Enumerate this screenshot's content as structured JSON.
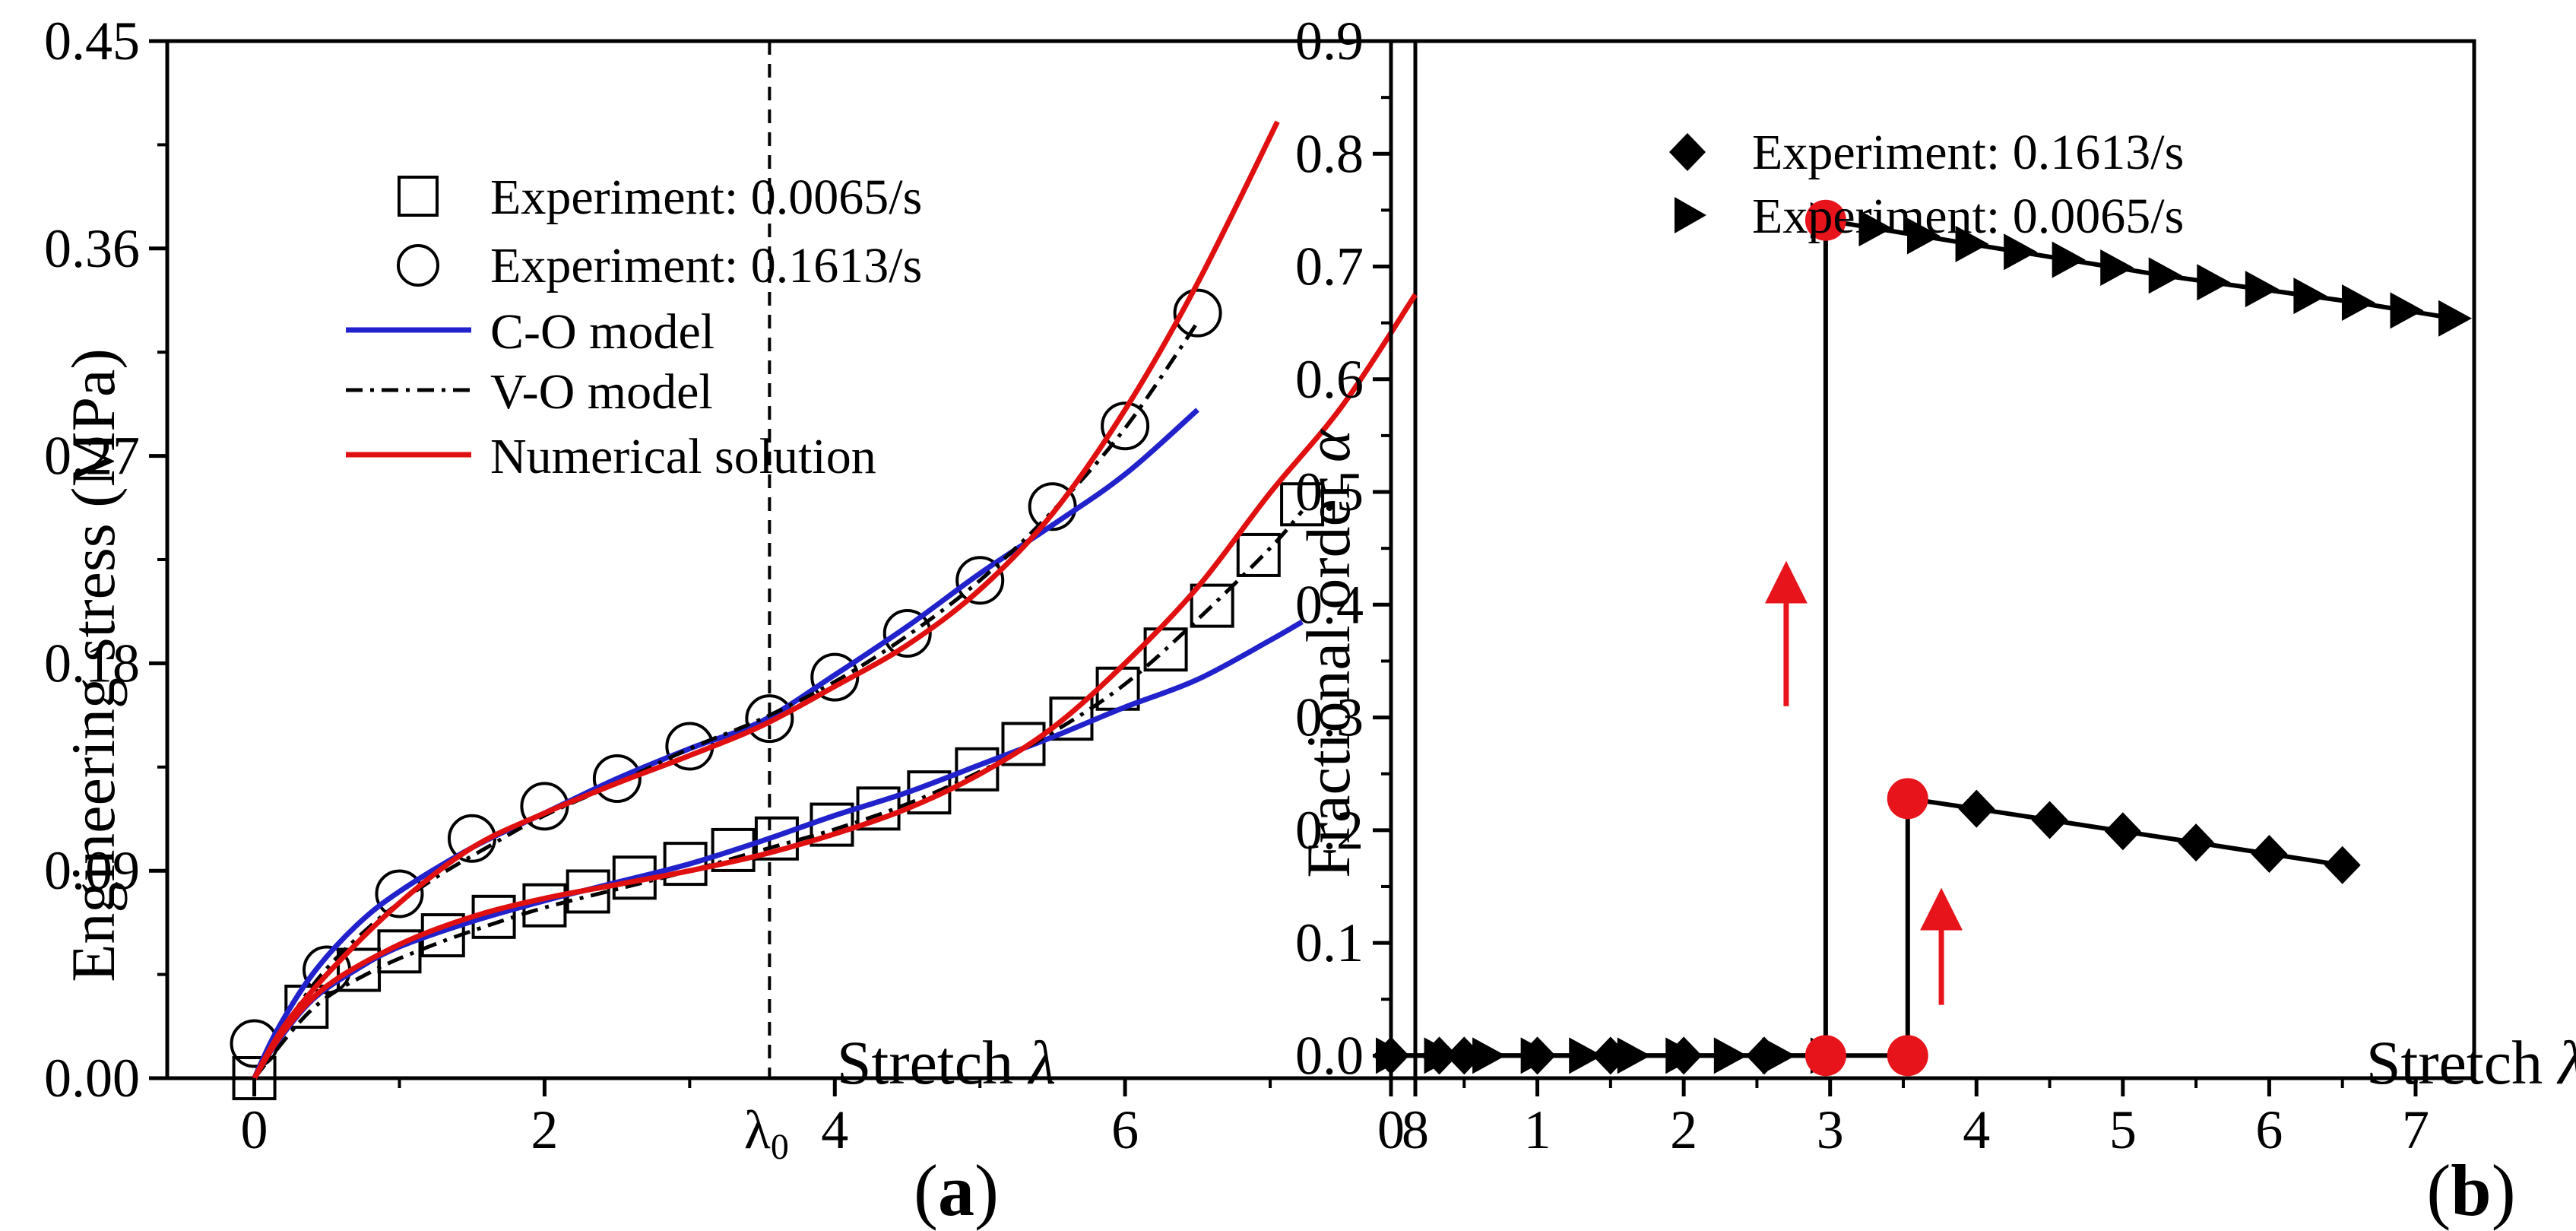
{
  "chart_data": [
    {
      "panel": "a",
      "panel_label_open": "(",
      "panel_label_letter": "a",
      "panel_label_close": ")",
      "type": "line",
      "xlabel": "Stretch",
      "xlabel_symbol": "λ",
      "ylabel": "Engineering stress (MPa)",
      "xlim": [
        -0.6,
        8
      ],
      "ylim": [
        0,
        0.45
      ],
      "xticks": [
        "0",
        "2",
        "4",
        "6",
        "8"
      ],
      "yticks": [
        "0.00",
        "0.09",
        "0.18",
        "0.27",
        "0.36",
        "0.45"
      ],
      "vline": {
        "x": 3.55,
        "label": "λ",
        "label_sub": "0"
      },
      "legend": [
        {
          "label": "Experiment: 0.0065/s",
          "marker": "square"
        },
        {
          "label": "Experiment: 0.1613/s",
          "marker": "circle"
        },
        {
          "label": "C-O model",
          "color": "#2222cc",
          "dash": "solid"
        },
        {
          "label": "V-O model",
          "color": "#000000",
          "dash": "dashdot"
        },
        {
          "label": "Numerical solution",
          "color": "#e01010",
          "dash": "solid"
        }
      ],
      "scatter": [
        {
          "name": "Experiment: 0.0065/s",
          "marker": "square",
          "x": [
            0,
            0.36,
            0.72,
            1.0,
            1.3,
            1.65,
            2.0,
            2.3,
            2.62,
            2.97,
            3.3,
            3.6,
            3.98,
            4.3,
            4.65,
            4.98,
            5.3,
            5.63,
            5.95,
            6.28,
            6.6,
            6.92,
            7.22
          ],
          "y": [
            0.0,
            0.031,
            0.047,
            0.055,
            0.062,
            0.07,
            0.075,
            0.081,
            0.087,
            0.093,
            0.099,
            0.104,
            0.11,
            0.117,
            0.124,
            0.134,
            0.145,
            0.156,
            0.169,
            0.186,
            0.205,
            0.227,
            0.249
          ]
        },
        {
          "name": "Experiment: 0.1613/s",
          "marker": "circle",
          "x": [
            0,
            0.5,
            1.0,
            1.5,
            2.0,
            2.5,
            3.0,
            3.55,
            4.0,
            4.5,
            5.0,
            5.5,
            6.0,
            6.5
          ],
          "y": [
            0.015,
            0.047,
            0.08,
            0.104,
            0.118,
            0.13,
            0.144,
            0.156,
            0.174,
            0.193,
            0.216,
            0.248,
            0.283,
            0.332
          ]
        }
      ],
      "lines": [
        {
          "name": "C-O model (0.0065/s)",
          "color": "#2222cc",
          "dash": "solid",
          "x": [
            0,
            0.15,
            0.4,
            0.7,
            1.0,
            1.5,
            2.0,
            2.5,
            3.0,
            3.5,
            4.0,
            4.5,
            5.0,
            5.5,
            6.0,
            6.5,
            7.0,
            7.22
          ],
          "y": [
            0.0,
            0.015,
            0.034,
            0.047,
            0.057,
            0.068,
            0.077,
            0.085,
            0.093,
            0.103,
            0.114,
            0.124,
            0.136,
            0.148,
            0.161,
            0.173,
            0.19,
            0.198
          ]
        },
        {
          "name": "C-O model (0.1613/s)",
          "color": "#2222cc",
          "dash": "solid",
          "x": [
            0,
            0.15,
            0.4,
            0.7,
            1.0,
            1.5,
            2.0,
            2.5,
            3.0,
            3.5,
            4.0,
            4.5,
            5.0,
            5.5,
            6.0,
            6.5
          ],
          "y": [
            0.0,
            0.02,
            0.045,
            0.066,
            0.081,
            0.1,
            0.115,
            0.13,
            0.143,
            0.155,
            0.175,
            0.196,
            0.219,
            0.24,
            0.262,
            0.29
          ]
        },
        {
          "name": "V-O model (0.0065/s)",
          "color": "#000000",
          "dash": "dashdot",
          "x": [
            0,
            0.4,
            0.8,
            1.2,
            1.6,
            2.0,
            2.5,
            3.0,
            3.5,
            4.0,
            4.5,
            5.0,
            5.5,
            6.0,
            6.5,
            7.0,
            7.22
          ],
          "y": [
            0.0,
            0.03,
            0.046,
            0.057,
            0.066,
            0.074,
            0.082,
            0.09,
            0.099,
            0.108,
            0.119,
            0.133,
            0.15,
            0.171,
            0.199,
            0.23,
            0.246
          ]
        },
        {
          "name": "V-O model (0.1613/s)",
          "color": "#000000",
          "dash": "dashdot",
          "x": [
            0,
            0.4,
            0.8,
            1.2,
            1.6,
            2.0,
            2.5,
            3.0,
            3.5,
            4.0,
            4.5,
            5.0,
            5.5,
            6.0,
            6.5
          ],
          "y": [
            0.0,
            0.04,
            0.066,
            0.085,
            0.1,
            0.114,
            0.128,
            0.143,
            0.156,
            0.172,
            0.192,
            0.216,
            0.246,
            0.282,
            0.328
          ]
        },
        {
          "name": "Numerical solution (0.0065/s)",
          "color": "#e01010",
          "dash": "solid",
          "x": [
            0,
            0.2,
            0.5,
            1.0,
            1.5,
            2.0,
            2.5,
            3.0,
            3.5,
            4.0,
            4.5,
            5.0,
            5.5,
            6.0,
            6.5,
            7.0,
            7.5,
            8.0
          ],
          "y": [
            0.0,
            0.02,
            0.04,
            0.058,
            0.07,
            0.078,
            0.084,
            0.09,
            0.097,
            0.106,
            0.117,
            0.132,
            0.152,
            0.18,
            0.213,
            0.254,
            0.292,
            0.34
          ]
        },
        {
          "name": "Numerical solution (0.1613/s)",
          "color": "#e01010",
          "dash": "solid",
          "x": [
            0,
            0.2,
            0.5,
            1.0,
            1.5,
            2.0,
            2.5,
            3.0,
            3.5,
            4.0,
            4.5,
            5.0,
            5.5,
            6.0,
            6.5,
            7.05
          ],
          "y": [
            0.0,
            0.022,
            0.045,
            0.076,
            0.1,
            0.115,
            0.128,
            0.14,
            0.153,
            0.17,
            0.188,
            0.212,
            0.245,
            0.29,
            0.345,
            0.415
          ]
        }
      ]
    },
    {
      "panel": "b",
      "panel_label_open": "(",
      "panel_label_letter": "b",
      "panel_label_close": ")",
      "type": "line",
      "xlabel": "Stretch",
      "xlabel_symbol": "λ",
      "ylabel": "Fractional order",
      "ylabel_symbol": "α",
      "xlim": [
        0,
        7.4
      ],
      "ylim": [
        -0.02,
        0.9
      ],
      "xticks": [
        "0",
        "1",
        "2",
        "3",
        "4",
        "5",
        "6",
        "7"
      ],
      "yticks": [
        "0.0",
        "0.1",
        "0.2",
        "0.3",
        "0.4",
        "0.5",
        "0.6",
        "0.7",
        "0.8",
        "0.9"
      ],
      "legend": [
        {
          "label": "Experiment: 0.1613/s",
          "marker": "diamond"
        },
        {
          "label": "Experiment: 0.0065/s",
          "marker": "triangle-right"
        }
      ],
      "series": [
        {
          "name": "Experiment: 0.1613/s",
          "marker": "diamond",
          "x": [
            0,
            0.33,
            0.5,
            1.0,
            1.5,
            2.0,
            2.55,
            3.0,
            3.53,
            3.53,
            4.0,
            4.5,
            5.0,
            5.5,
            6.0,
            6.5
          ],
          "y": [
            0.0,
            0.0,
            0.0,
            0.0,
            0.0,
            0.0,
            0.0,
            0.0,
            0.0,
            0.228,
            0.219,
            0.209,
            0.199,
            0.189,
            0.179,
            0.169
          ]
        },
        {
          "name": "Experiment: 0.0065/s",
          "marker": "triangle-right",
          "x": [
            0,
            0.33,
            0.66,
            0.99,
            1.32,
            1.65,
            1.98,
            2.31,
            2.64,
            2.97,
            2.97,
            3.3,
            3.63,
            3.96,
            4.29,
            4.62,
            4.95,
            5.28,
            5.61,
            5.94,
            6.27,
            6.6,
            6.93,
            7.26
          ],
          "y": [
            0.0,
            0.0,
            0.0,
            0.0,
            0.0,
            0.0,
            0.0,
            0.0,
            0.0,
            0.0,
            0.741,
            0.734,
            0.727,
            0.72,
            0.713,
            0.706,
            0.699,
            0.692,
            0.686,
            0.68,
            0.674,
            0.668,
            0.661,
            0.654
          ]
        }
      ],
      "highlight_points": {
        "color": "#e8141c",
        "points": [
          {
            "x": 2.97,
            "y": 0.0
          },
          {
            "x": 2.97,
            "y": 0.741
          },
          {
            "x": 3.53,
            "y": 0.0
          },
          {
            "x": 3.53,
            "y": 0.228
          }
        ]
      },
      "arrows": [
        {
          "x": 2.7,
          "y_from": 0.31,
          "y_to": 0.42,
          "color": "#e8141c"
        },
        {
          "x": 3.76,
          "y_from": 0.045,
          "y_to": 0.13,
          "color": "#e8141c"
        }
      ]
    }
  ]
}
